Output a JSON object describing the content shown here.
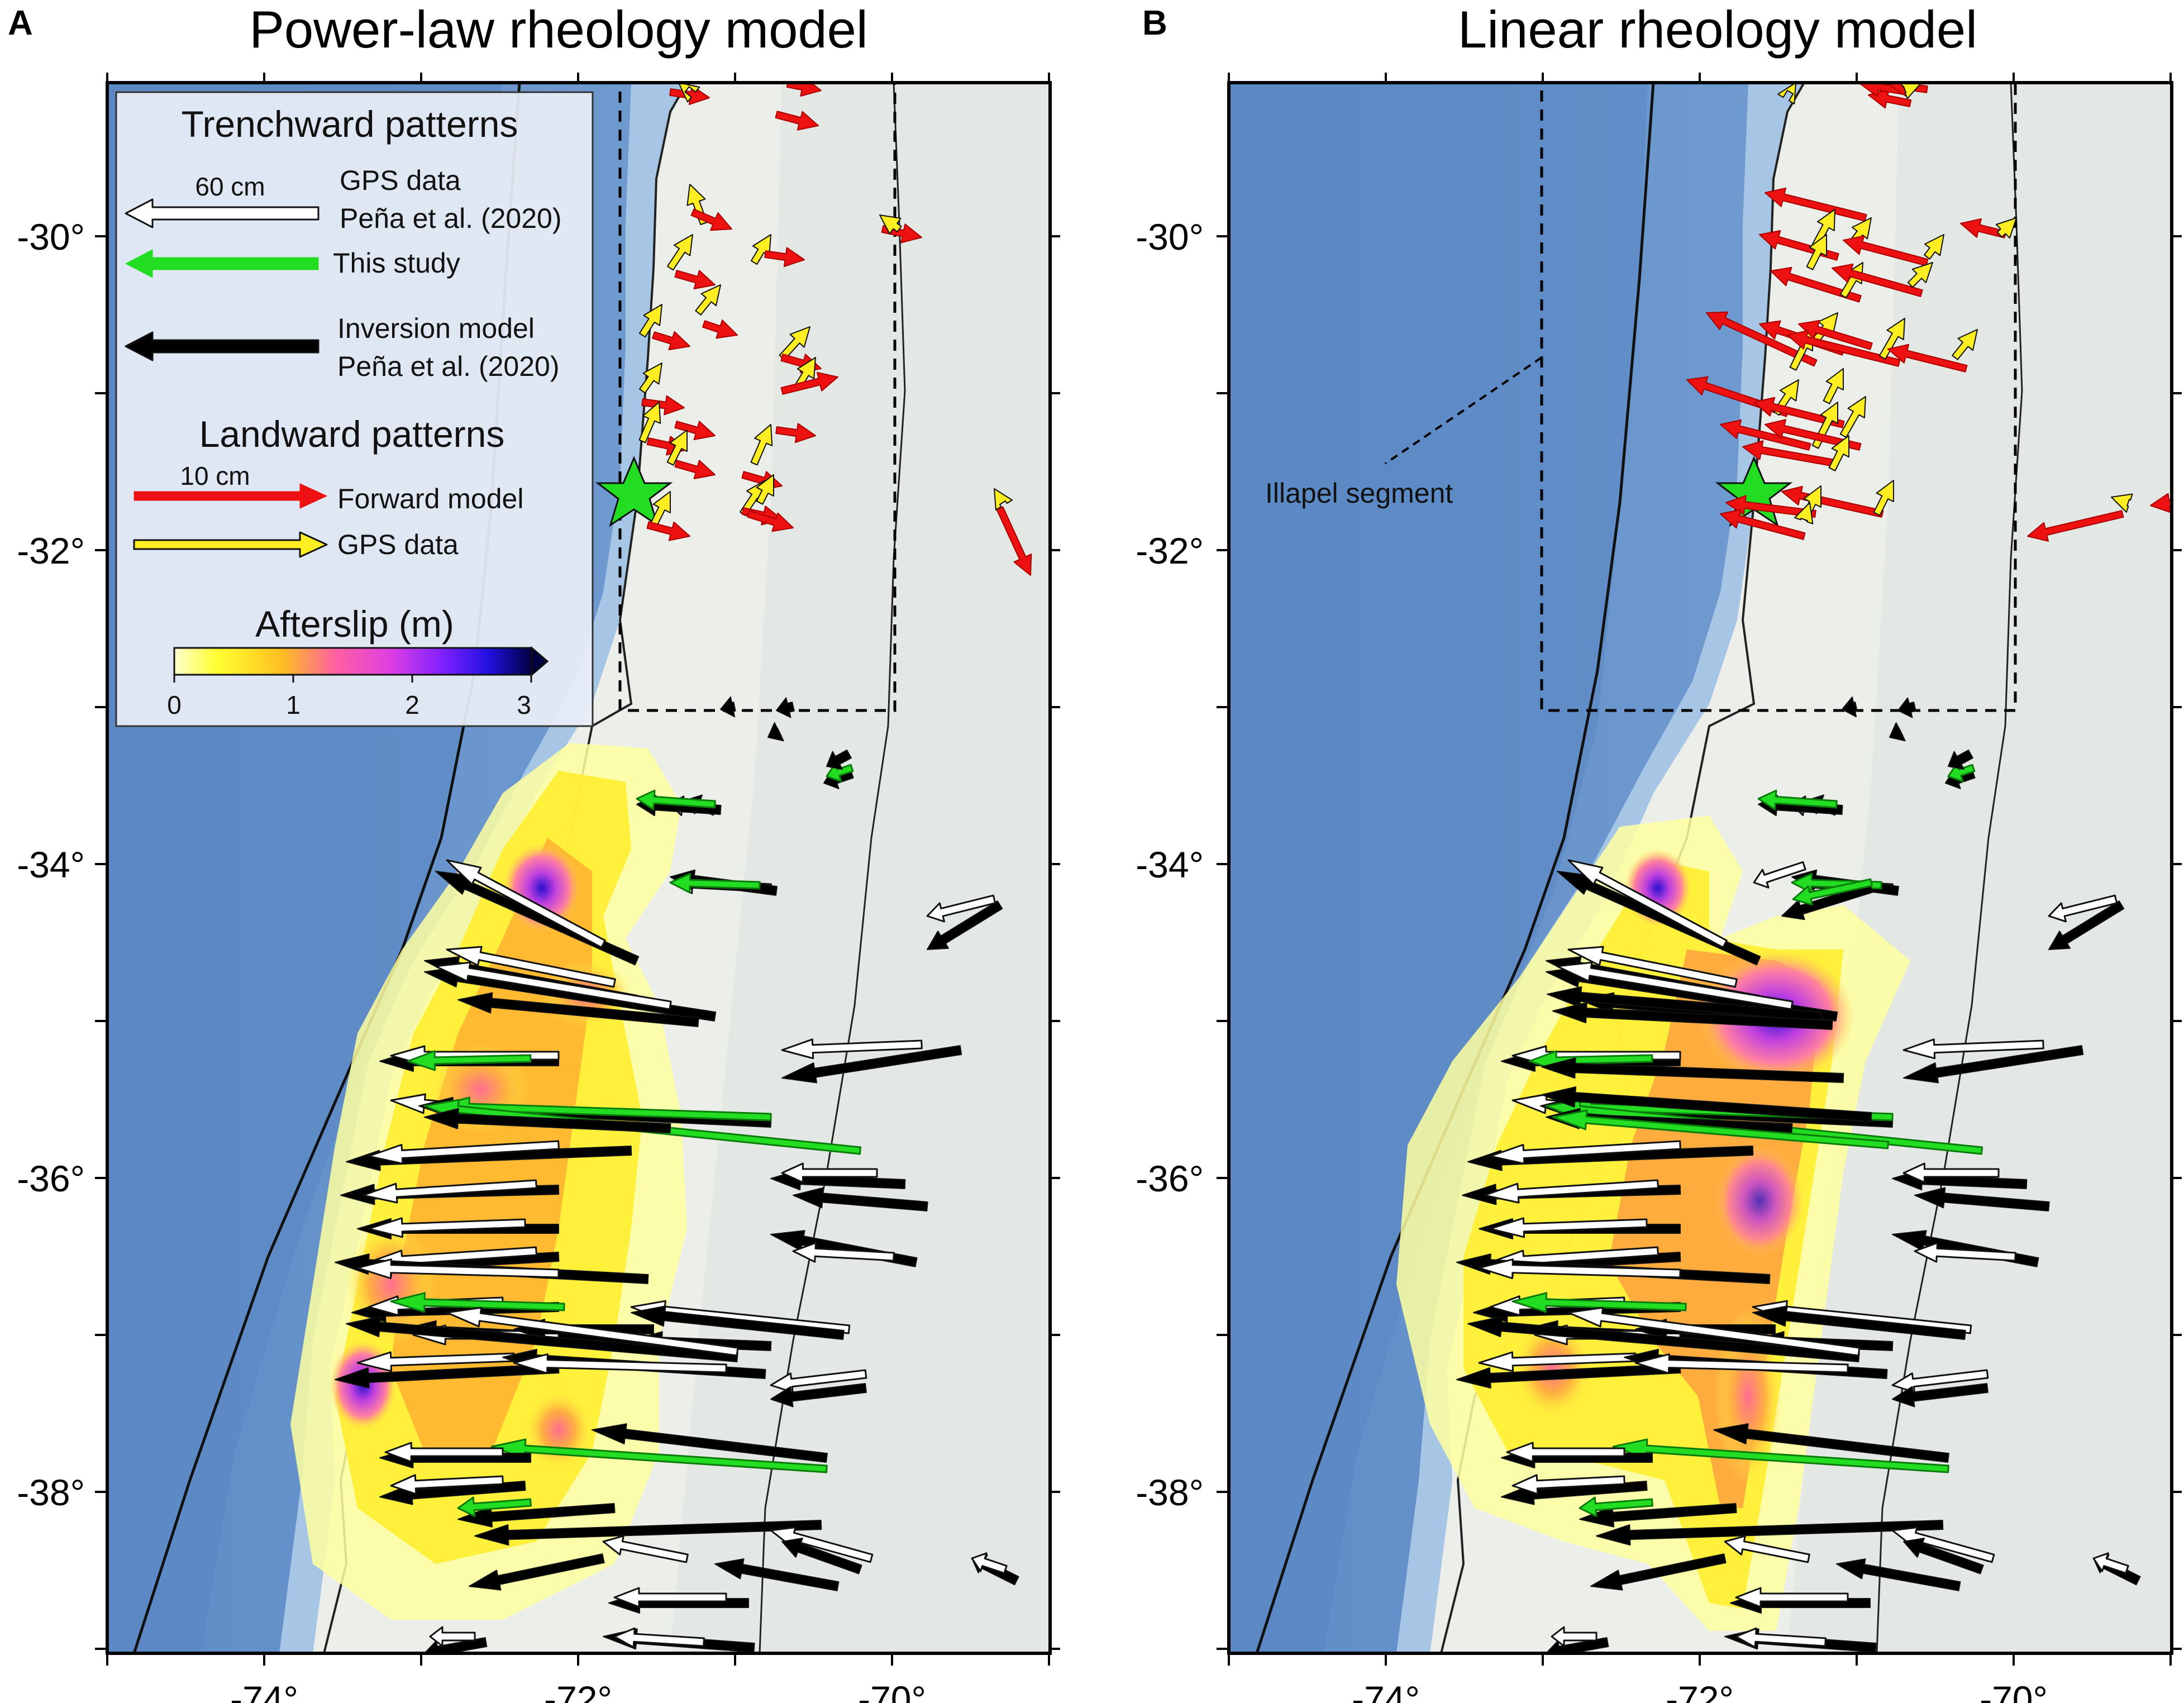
{
  "panels": [
    {
      "letter": "A",
      "title": "Power-law rheology model",
      "has_legend": true,
      "has_segment_label": false
    },
    {
      "letter": "B",
      "title": "Linear rheology model",
      "has_legend": false,
      "has_segment_label": true
    }
  ],
  "axes": {
    "lat_labels": [
      "-30°",
      "-32°",
      "-34°",
      "-36°",
      "-38°"
    ],
    "lon_labels": [
      "-74°",
      "-72°",
      "-70°"
    ]
  },
  "legend": {
    "trenchward_title": "Trenchward patterns",
    "trench_scale": "60 cm",
    "gps_data_line1": "GPS data",
    "gps_data_line2": "Peña et al. (2020)",
    "this_study": "This study",
    "inversion_line1": "Inversion model",
    "inversion_line2": "Peña et al. (2020)",
    "landward_title": "Landward patterns",
    "land_scale": "10 cm",
    "forward_model": "Forward model",
    "gps_data": "GPS data",
    "afterslip_title": "Afterslip (m)",
    "colorbar_ticks": [
      "0",
      "1",
      "2",
      "3"
    ],
    "colorbar_colors": [
      "#ffffd0",
      "#ffff30",
      "#ffc020",
      "#ff60a0",
      "#e040e0",
      "#8020ff",
      "#2010e0",
      "#000040"
    ]
  },
  "segment_label": "Illapel segment",
  "colors": {
    "ocean": "#7fa9d6",
    "deep_ocean": "#5a88c4",
    "land": "#ececea",
    "red_arrow": "#ee1111",
    "yellow_arrow": "#ffee22",
    "green_arrow": "#22dd22",
    "black_arrow": "#000000",
    "white_arrow": "#ffffff",
    "star": "#22dd22"
  }
}
